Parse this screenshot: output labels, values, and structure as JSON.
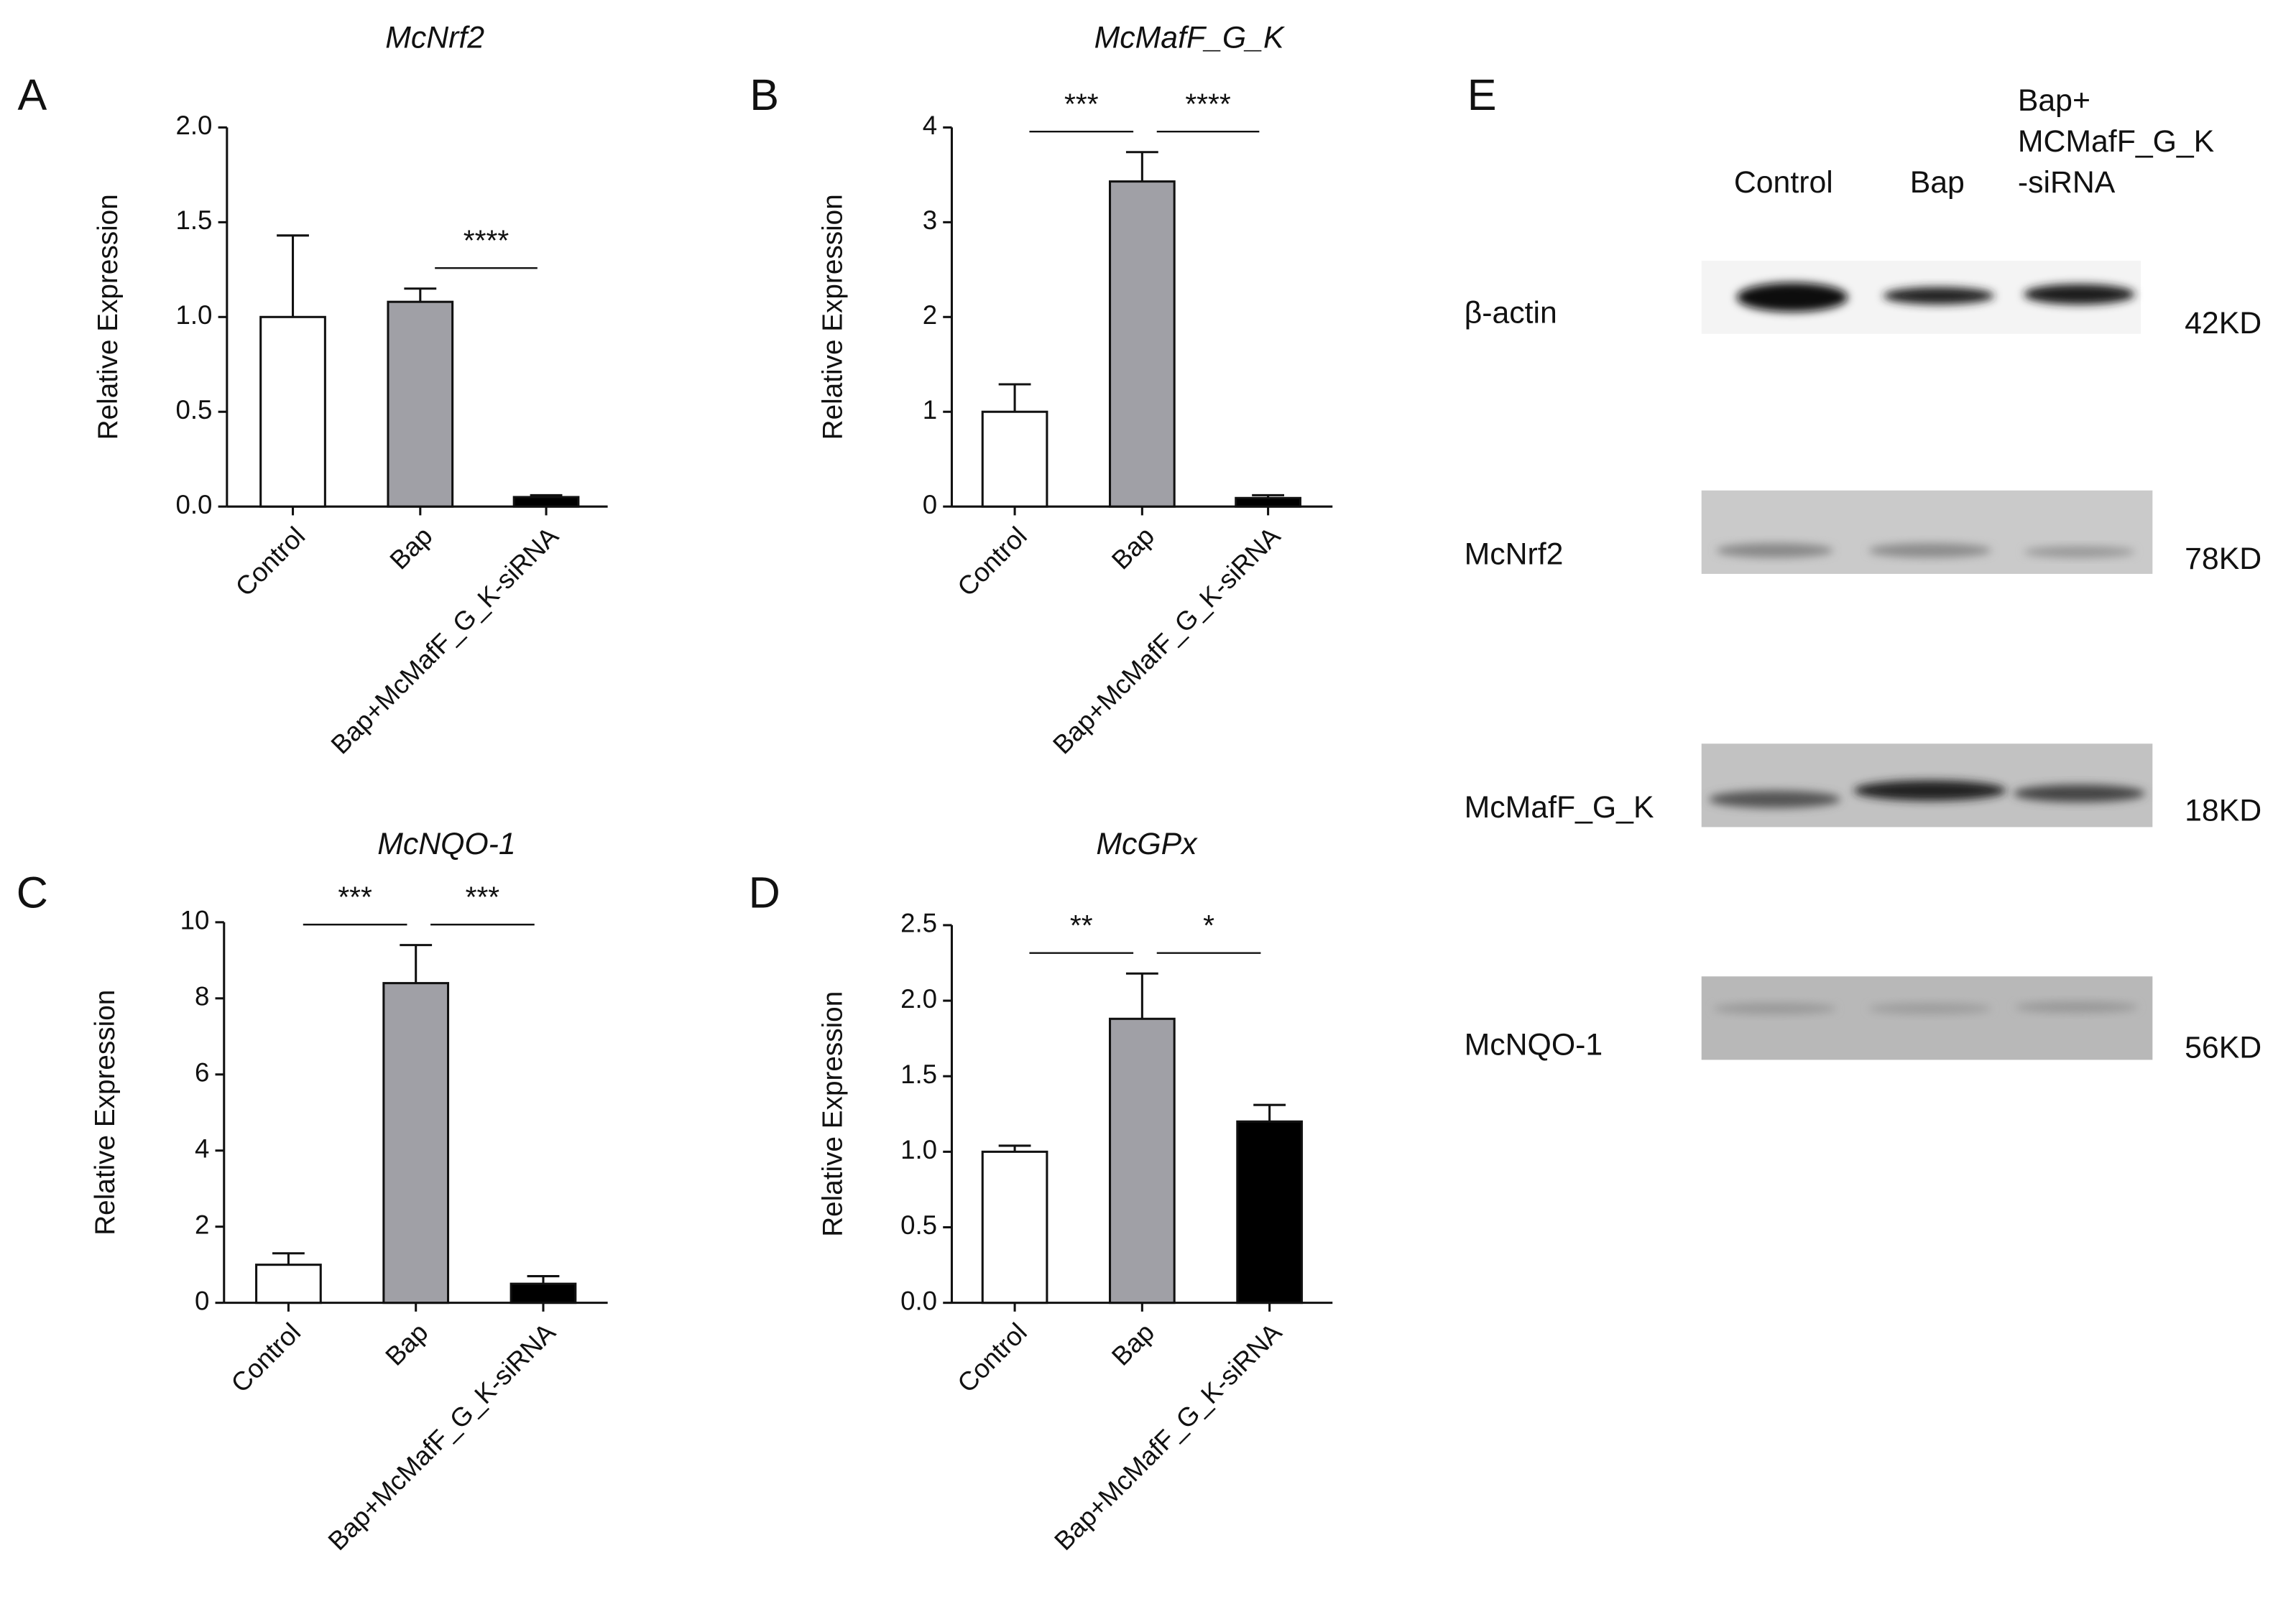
{
  "chart_data": [
    {
      "type": "bar",
      "panel": "A",
      "title": "McNrf2",
      "y_label": "Relative Expression",
      "categories": [
        "Control",
        "Bap",
        "Bap+McMafF_G_K-siRNA"
      ],
      "values": [
        1.0,
        1.08,
        0.05
      ],
      "errors": [
        0.43,
        0.07,
        0.01
      ],
      "colors": [
        "#ffffff",
        "#a0a0a6",
        "#000000"
      ],
      "ylim": [
        0,
        2
      ],
      "yticks": [
        {
          "value": 0,
          "label": "0.0"
        },
        {
          "value": 0.5,
          "label": "0.5"
        },
        {
          "value": 1,
          "label": "1.0"
        },
        {
          "value": 1.5,
          "label": "1.5"
        },
        {
          "value": 2,
          "label": "2.0"
        }
      ],
      "annotations": [
        {
          "label": "****",
          "between": [
            "Bap",
            "Bap+McMafF_G_K-siRNA"
          ]
        }
      ]
    },
    {
      "type": "bar",
      "panel": "B",
      "title": "McMafF_G_K",
      "y_label": "Relative Expression",
      "categories": [
        "Control",
        "Bap",
        "Bap+McMafF_G_K-siRNA"
      ],
      "values": [
        1.0,
        3.43,
        0.09
      ],
      "errors": [
        0.29,
        0.31,
        0.03
      ],
      "colors": [
        "#ffffff",
        "#a0a0a6",
        "#000000"
      ],
      "ylim": [
        0,
        4
      ],
      "yticks": [
        0,
        1,
        2,
        3,
        4
      ],
      "annotations": [
        {
          "label": "***",
          "between": [
            "Control",
            "Bap"
          ]
        },
        {
          "label": "****",
          "between": [
            "Bap",
            "Bap+McMafF_G_K-siRNA"
          ]
        }
      ]
    },
    {
      "type": "bar",
      "panel": "C",
      "title": "McNQO-1",
      "y_label": "Relative Expression",
      "categories": [
        "Control",
        "Bap",
        "Bap+McMafF_G_K-siRNA"
      ],
      "values": [
        1.0,
        8.4,
        0.5
      ],
      "errors": [
        0.3,
        1.0,
        0.2
      ],
      "colors": [
        "#ffffff",
        "#a0a0a6",
        "#000000"
      ],
      "ylim": [
        0,
        10
      ],
      "yticks": [
        0,
        2,
        4,
        6,
        8,
        10
      ],
      "annotations": [
        {
          "label": "***",
          "between": [
            "Control",
            "Bap"
          ]
        },
        {
          "label": "***",
          "between": [
            "Bap",
            "Bap+McMafF_G_K-siRNA"
          ]
        }
      ]
    },
    {
      "type": "bar",
      "panel": "D",
      "title": "McGPx",
      "y_label": "Relative Expression",
      "categories": [
        "Control",
        "Bap",
        "Bap+McMafF_G_K-siRNA"
      ],
      "values": [
        1.0,
        1.88,
        1.2
      ],
      "errors": [
        0.04,
        0.3,
        0.11
      ],
      "colors": [
        "#ffffff",
        "#a0a0a6",
        "#000000"
      ],
      "ylim": [
        0,
        2.5
      ],
      "yticks": [
        {
          "value": 0,
          "label": "0.0"
        },
        {
          "value": 0.5,
          "label": "0.5"
        },
        {
          "value": 1,
          "label": "1.0"
        },
        {
          "value": 1.5,
          "label": "1.5"
        },
        {
          "value": 2,
          "label": "2.0"
        },
        {
          "value": 2.5,
          "label": "2.5"
        }
      ],
      "annotations": [
        {
          "label": "**",
          "between": [
            "Control",
            "Bap"
          ]
        },
        {
          "label": "*",
          "between": [
            "Bap",
            "Bap+McMafF_G_K-siRNA"
          ]
        }
      ]
    }
  ],
  "blot": {
    "panel": "E",
    "lanes": [
      [
        "Control"
      ],
      [
        "Bap"
      ],
      [
        "Bap+",
        "MCMafF_G_K",
        "-siRNA"
      ]
    ],
    "rows": [
      {
        "protein": "β-actin",
        "size": "42KD"
      },
      {
        "protein": "McNrf2",
        "size": "78KD"
      },
      {
        "protein": "McMafF_G_K",
        "size": "18KD"
      },
      {
        "protein": "McNQO-1",
        "size": "56KD"
      }
    ]
  }
}
